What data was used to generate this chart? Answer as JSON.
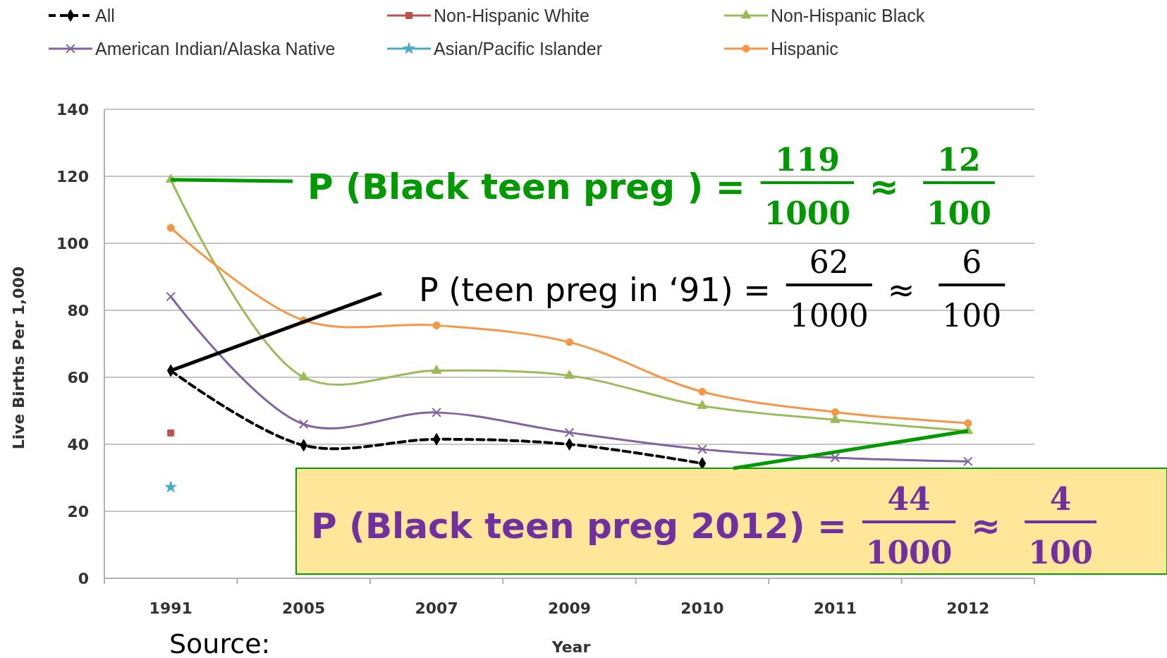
{
  "chart_data": {
    "type": "line",
    "xlabel": "Year",
    "ylabel": "Live Births Per 1,000",
    "categories": [
      "1991",
      "2005",
      "2007",
      "2009",
      "2010",
      "2011",
      "2012"
    ],
    "ylim": [
      0,
      140
    ],
    "yticks": [
      0,
      20,
      40,
      60,
      80,
      100,
      120,
      140
    ],
    "grid": "y",
    "legend": "top",
    "series": [
      {
        "name": "All",
        "color": "#000000",
        "marker": "diamond",
        "line_style": "dashed",
        "values": [
          62,
          39.7,
          41.5,
          40,
          34.3,
          null,
          null
        ]
      },
      {
        "name": "Non-Hispanic White",
        "color": "#c0504d",
        "marker": "square",
        "line_style": "solid",
        "values": [
          43.4,
          null,
          null,
          null,
          null,
          null,
          null
        ]
      },
      {
        "name": "Non-Hispanic Black",
        "color": "#9bbb59",
        "marker": "triangle",
        "line_style": "solid",
        "values": [
          119,
          60,
          62,
          60.5,
          51.5,
          47.3,
          44
        ]
      },
      {
        "name": "American Indian/Alaska Native",
        "color": "#8064a2",
        "marker": "cross",
        "line_style": "solid",
        "values": [
          84.1,
          46,
          49.5,
          43.5,
          38.5,
          36,
          34.9
        ]
      },
      {
        "name": "Asian/Pacific Islander",
        "color": "#4bacc6",
        "marker": "star",
        "line_style": "solid",
        "values": [
          27.2,
          null,
          null,
          null,
          null,
          null,
          null
        ]
      },
      {
        "name": "Hispanic",
        "color": "#f79646",
        "marker": "circle",
        "line_style": "solid",
        "values": [
          104.6,
          77,
          75.5,
          70.5,
          55.7,
          49.6,
          46.3
        ]
      }
    ],
    "annotations": [
      {
        "text": "P (Black teen preg ) =",
        "x": "1991",
        "y": 119
      },
      "119",
      "1000",
      "≈",
      "12",
      "100",
      {
        "text": "P (teen preg in ‘91) =",
        "x": "1991",
        "y": 62
      },
      "62",
      "1000",
      "≈",
      "6",
      "100",
      {
        "text": "P (Black teen preg 2012) =",
        "x": "2012",
        "y": 44
      },
      "44",
      "1000",
      "≈",
      "4",
      "100",
      "Source:"
    ]
  }
}
